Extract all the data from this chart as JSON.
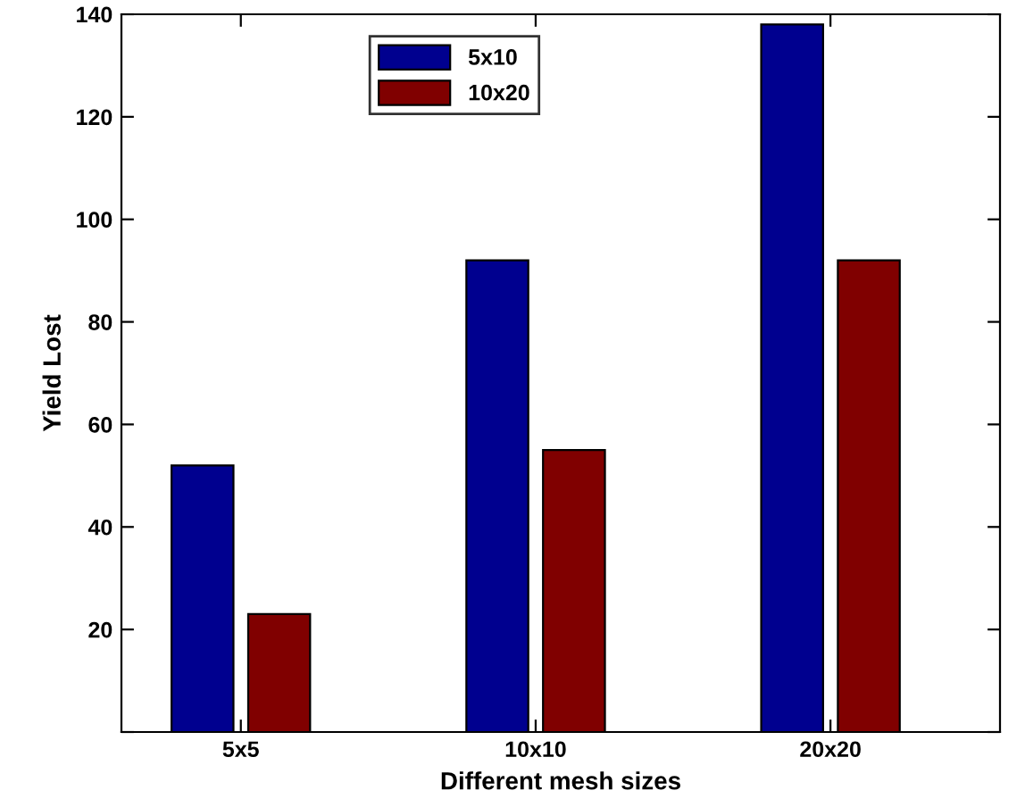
{
  "chart_data": {
    "type": "bar",
    "xlabel": "Different mesh sizes",
    "ylabel": "Yield Lost",
    "categories": [
      "5x5",
      "10x10",
      "20x20"
    ],
    "series": [
      {
        "name": "5x10",
        "color": "#00008f",
        "values": [
          52,
          92,
          138
        ]
      },
      {
        "name": "10x20",
        "color": "#800000",
        "values": [
          23,
          55,
          92
        ]
      }
    ],
    "ylim": [
      0,
      140
    ],
    "yticks": [
      {
        "value": 0,
        "label": null
      },
      20,
      40,
      60,
      80,
      100,
      120,
      140
    ],
    "grid": false,
    "legend": "top left"
  }
}
